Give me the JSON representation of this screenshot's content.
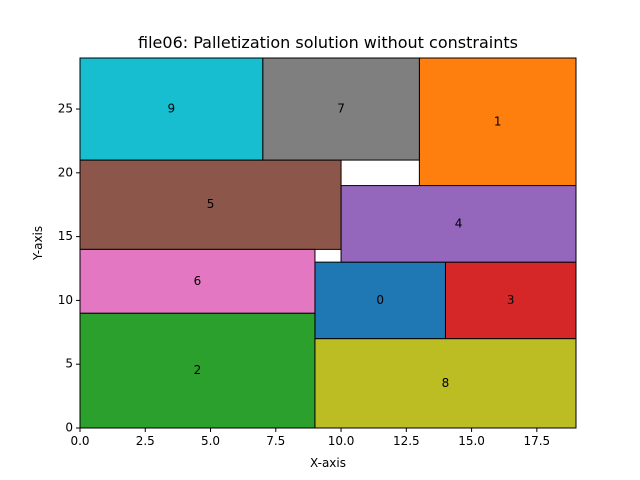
{
  "chart_data": {
    "type": "rectangles",
    "title": "file06: Palletization solution without constraints",
    "xlabel": "X-axis",
    "ylabel": "Y-axis",
    "xlim": [
      0,
      19
    ],
    "ylim": [
      0,
      29
    ],
    "x_ticks": [
      0.0,
      2.5,
      5.0,
      7.5,
      10.0,
      12.5,
      15.0,
      17.5
    ],
    "x_tick_labels": [
      "0.0",
      "2.5",
      "5.0",
      "7.5",
      "10.0",
      "12.5",
      "15.0",
      "17.5"
    ],
    "y_ticks": [
      0,
      5,
      10,
      15,
      20,
      25
    ],
    "y_tick_labels": [
      "0",
      "5",
      "10",
      "15",
      "20",
      "25"
    ],
    "grid": false,
    "boxes": [
      {
        "label": "0",
        "x": 9,
        "y": 7,
        "w": 5,
        "h": 6,
        "color": "#1f77b4"
      },
      {
        "label": "1",
        "x": 13,
        "y": 19,
        "w": 6,
        "h": 10,
        "color": "#ff7f0e"
      },
      {
        "label": "2",
        "x": 0,
        "y": 0,
        "w": 9,
        "h": 9,
        "color": "#2ca02c"
      },
      {
        "label": "3",
        "x": 14,
        "y": 7,
        "w": 5,
        "h": 6,
        "color": "#d62728"
      },
      {
        "label": "4",
        "x": 10,
        "y": 13,
        "w": 9,
        "h": 6,
        "color": "#9467bd"
      },
      {
        "label": "5",
        "x": 0,
        "y": 14,
        "w": 10,
        "h": 7,
        "color": "#8c564b"
      },
      {
        "label": "6",
        "x": 0,
        "y": 9,
        "w": 9,
        "h": 5,
        "color": "#e377c2"
      },
      {
        "label": "7",
        "x": 7,
        "y": 21,
        "w": 6,
        "h": 8,
        "color": "#7f7f7f"
      },
      {
        "label": "8",
        "x": 9,
        "y": 0,
        "w": 10,
        "h": 7,
        "color": "#bcbd22"
      },
      {
        "label": "9",
        "x": 0,
        "y": 21,
        "w": 7,
        "h": 8,
        "color": "#17becf"
      }
    ]
  }
}
